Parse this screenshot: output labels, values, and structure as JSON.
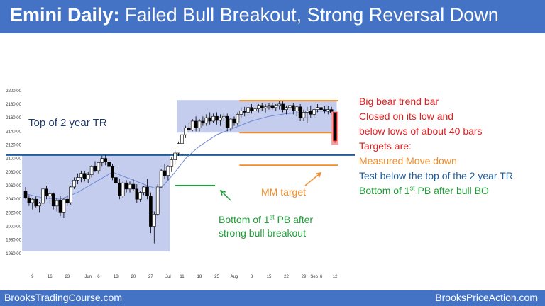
{
  "header": {
    "title_bold": "Emini Daily:",
    "title_rest": " Failed Bull Breakout, Strong Reversal Down"
  },
  "footer": {
    "left": "BrooksTradingCourse.com",
    "right": "BrooksPriceAction.com"
  },
  "colors": {
    "header_bg": "#4472c4",
    "range_box": "#c5cdef",
    "bull_candle": "#ffffff",
    "bear_candle": "#000000",
    "ema": "#6e8ad6",
    "blue_line": "#1f5c99",
    "orange": "#f28c28",
    "green": "#1e9e36",
    "red": "#e01e1e"
  },
  "annotations": {
    "top_tr": "Top of 2 year TR",
    "mm_target": "MM target",
    "pb_line1_pre": "Bottom of 1",
    "pb_line1_sup": "st",
    "pb_line1_post": " PB after",
    "pb_line2": "strong bull breakout",
    "right_1": "Big bear trend bar",
    "right_2": "Closed on its low and",
    "right_3": "below lows of about 40 bars",
    "right_4": "Targets are:",
    "right_5": "Measured Move down",
    "right_6": "Test below the top of the 2 year TR",
    "right_7_pre": "Bottom of 1",
    "right_7_sup": "st",
    "right_7_post": " PB after bull BO"
  },
  "chart_data": {
    "type": "candlestick",
    "title": "Emini Daily: Failed Bull Breakout, Strong Reversal Down",
    "ylim": [
      1950,
      2205
    ],
    "y_ticks": [
      "1960.00",
      "1980.00",
      "2000.00",
      "2020.00",
      "2040.00",
      "2060.00",
      "2080.00",
      "2100.00",
      "2120.00",
      "2140.00",
      "2160.00",
      "2180.00",
      "2200.00"
    ],
    "x_ticks": [
      {
        "label": "9",
        "bar": 2
      },
      {
        "label": "16",
        "bar": 7
      },
      {
        "label": "23",
        "bar": 12
      },
      {
        "label": "Jun",
        "bar": 18
      },
      {
        "label": "6",
        "bar": 21
      },
      {
        "label": "13",
        "bar": 26
      },
      {
        "label": "20",
        "bar": 31
      },
      {
        "label": "27",
        "bar": 36
      },
      {
        "label": "Jul",
        "bar": 41
      },
      {
        "label": "11",
        "bar": 45
      },
      {
        "label": "18",
        "bar": 50
      },
      {
        "label": "25",
        "bar": 55
      },
      {
        "label": "Aug",
        "bar": 60
      },
      {
        "label": "8",
        "bar": 65
      },
      {
        "label": "15",
        "bar": 70
      },
      {
        "label": "22",
        "bar": 75
      },
      {
        "label": "29",
        "bar": 80
      },
      {
        "label": "Sep",
        "bar": 83
      },
      {
        "label": "6",
        "bar": 85
      },
      {
        "label": "12",
        "bar": 89
      }
    ],
    "candles": [
      [
        2052,
        2058,
        2040,
        2042
      ],
      [
        2042,
        2046,
        2030,
        2035
      ],
      [
        2035,
        2042,
        2025,
        2040
      ],
      [
        2040,
        2044,
        2028,
        2030
      ],
      [
        2030,
        2036,
        2020,
        2034
      ],
      [
        2034,
        2058,
        2030,
        2055
      ],
      [
        2055,
        2060,
        2040,
        2045
      ],
      [
        2045,
        2052,
        2035,
        2048
      ],
      [
        2048,
        2050,
        2025,
        2030
      ],
      [
        2030,
        2042,
        2022,
        2038
      ],
      [
        2038,
        2045,
        2015,
        2020
      ],
      [
        2020,
        2042,
        2012,
        2040
      ],
      [
        2040,
        2046,
        2030,
        2035
      ],
      [
        2035,
        2060,
        2032,
        2058
      ],
      [
        2058,
        2072,
        2055,
        2068
      ],
      [
        2068,
        2078,
        2062,
        2072
      ],
      [
        2072,
        2082,
        2065,
        2078
      ],
      [
        2078,
        2082,
        2066,
        2070
      ],
      [
        2070,
        2080,
        2064,
        2076
      ],
      [
        2076,
        2090,
        2072,
        2088
      ],
      [
        2088,
        2096,
        2080,
        2082
      ],
      [
        2082,
        2095,
        2078,
        2094
      ],
      [
        2094,
        2104,
        2088,
        2100
      ],
      [
        2100,
        2105,
        2090,
        2095
      ],
      [
        2095,
        2100,
        2085,
        2088
      ],
      [
        2088,
        2092,
        2068,
        2072
      ],
      [
        2072,
        2082,
        2060,
        2064
      ],
      [
        2064,
        2070,
        2040,
        2045
      ],
      [
        2045,
        2066,
        2042,
        2064
      ],
      [
        2064,
        2068,
        2050,
        2055
      ],
      [
        2055,
        2066,
        2050,
        2062
      ],
      [
        2062,
        2070,
        2052,
        2055
      ],
      [
        2055,
        2062,
        2035,
        2040
      ],
      [
        2040,
        2052,
        2036,
        2050
      ],
      [
        2050,
        2060,
        2046,
        2058
      ],
      [
        2058,
        2070,
        2040,
        2045
      ],
      [
        2045,
        2050,
        1990,
        2000
      ],
      [
        2000,
        2022,
        1975,
        2018
      ],
      [
        2018,
        2062,
        2015,
        2058
      ],
      [
        2058,
        2085,
        2056,
        2082
      ],
      [
        2082,
        2092,
        2070,
        2075
      ],
      [
        2075,
        2090,
        2068,
        2088
      ],
      [
        2088,
        2102,
        2080,
        2098
      ],
      [
        2098,
        2112,
        2092,
        2108
      ],
      [
        2108,
        2125,
        2104,
        2122
      ],
      [
        2122,
        2138,
        2118,
        2135
      ],
      [
        2135,
        2148,
        2130,
        2145
      ],
      [
        2145,
        2152,
        2138,
        2142
      ],
      [
        2142,
        2158,
        2140,
        2155
      ],
      [
        2155,
        2162,
        2140,
        2145
      ],
      [
        2145,
        2158,
        2140,
        2155
      ],
      [
        2155,
        2162,
        2148,
        2152
      ],
      [
        2152,
        2165,
        2148,
        2160
      ],
      [
        2160,
        2168,
        2150,
        2155
      ],
      [
        2155,
        2166,
        2152,
        2162
      ],
      [
        2162,
        2168,
        2150,
        2156
      ],
      [
        2156,
        2165,
        2148,
        2160
      ],
      [
        2160,
        2168,
        2155,
        2162
      ],
      [
        2162,
        2166,
        2140,
        2145
      ],
      [
        2145,
        2160,
        2140,
        2158
      ],
      [
        2158,
        2162,
        2148,
        2152
      ],
      [
        2152,
        2168,
        2148,
        2165
      ],
      [
        2165,
        2175,
        2160,
        2170
      ],
      [
        2170,
        2176,
        2162,
        2168
      ],
      [
        2168,
        2178,
        2164,
        2175
      ],
      [
        2175,
        2180,
        2166,
        2170
      ],
      [
        2170,
        2176,
        2164,
        2173
      ],
      [
        2173,
        2180,
        2168,
        2178
      ],
      [
        2178,
        2182,
        2170,
        2174
      ],
      [
        2174,
        2180,
        2168,
        2176
      ],
      [
        2176,
        2182,
        2172,
        2178
      ],
      [
        2178,
        2182,
        2172,
        2175
      ],
      [
        2175,
        2180,
        2170,
        2178
      ],
      [
        2178,
        2185,
        2172,
        2180
      ],
      [
        2180,
        2184,
        2168,
        2172
      ],
      [
        2172,
        2178,
        2165,
        2175
      ],
      [
        2175,
        2182,
        2170,
        2178
      ],
      [
        2178,
        2182,
        2165,
        2170
      ],
      [
        2170,
        2178,
        2162,
        2176
      ],
      [
        2176,
        2180,
        2155,
        2160
      ],
      [
        2160,
        2172,
        2155,
        2168
      ],
      [
        2168,
        2176,
        2152,
        2170
      ],
      [
        2170,
        2178,
        2160,
        2165
      ],
      [
        2165,
        2175,
        2160,
        2172
      ],
      [
        2172,
        2180,
        2168,
        2175
      ],
      [
        2175,
        2180,
        2168,
        2172
      ],
      [
        2172,
        2177,
        2166,
        2170
      ],
      [
        2170,
        2178,
        2165,
        2172
      ],
      [
        2172,
        2176,
        2164,
        2168
      ],
      [
        2168,
        2168,
        2123,
        2126
      ]
    ],
    "ema_points": [
      [
        0,
        2048
      ],
      [
        5,
        2042
      ],
      [
        10,
        2040
      ],
      [
        15,
        2050
      ],
      [
        20,
        2065
      ],
      [
        25,
        2080
      ],
      [
        30,
        2070
      ],
      [
        35,
        2060
      ],
      [
        38,
        2055
      ],
      [
        40,
        2062
      ],
      [
        43,
        2080
      ],
      [
        46,
        2100
      ],
      [
        50,
        2118
      ],
      [
        55,
        2135
      ],
      [
        60,
        2145
      ],
      [
        65,
        2155
      ],
      [
        70,
        2162
      ],
      [
        75,
        2166
      ],
      [
        80,
        2168
      ],
      [
        85,
        2170
      ],
      [
        89,
        2168
      ]
    ],
    "ranges": [
      {
        "x0": -1,
        "x1": 41.5,
        "y0": 1963,
        "y1": 2105,
        "label": "Top of 2 year TR"
      },
      {
        "x0": 43.5,
        "x1": 89.5,
        "y0": 2138,
        "y1": 2186
      }
    ],
    "levels": [
      {
        "name": "top-of-2-year-tr",
        "value": 2105,
        "color": "blue"
      },
      {
        "name": "range-top",
        "value": 2185,
        "color": "orange"
      },
      {
        "name": "range-bottom",
        "value": 2138,
        "color": "orange"
      },
      {
        "name": "measured-move-target",
        "value": 2090,
        "color": "orange"
      },
      {
        "name": "first-pullback-bottom",
        "value": 2060,
        "color": "green"
      }
    ]
  }
}
